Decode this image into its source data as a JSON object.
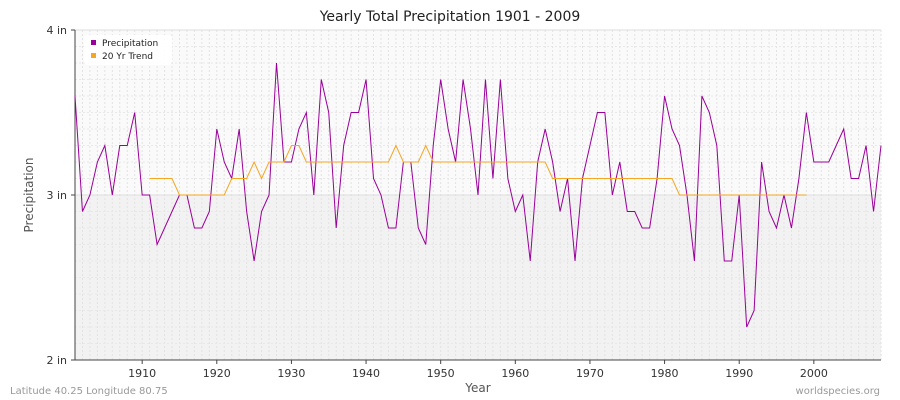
{
  "chart_data": {
    "type": "line",
    "title": "Yearly Total Precipitation 1901 - 2009",
    "xlabel": "Year",
    "ylabel": "Precipitation",
    "xlim": [
      1901,
      2009
    ],
    "ylim": [
      2,
      4
    ],
    "x_ticks": [
      1910,
      1920,
      1930,
      1940,
      1950,
      1960,
      1970,
      1980,
      1990,
      2000
    ],
    "y_ticks": [
      {
        "value": 2,
        "label": "2 in"
      },
      {
        "value": 3,
        "label": "3 in"
      },
      {
        "value": 4,
        "label": "4 in"
      }
    ],
    "grid": true,
    "legend_position": "top-left",
    "series": [
      {
        "name": "Precipitation",
        "color": "#990099",
        "x": [
          1901,
          1902,
          1903,
          1904,
          1905,
          1906,
          1907,
          1908,
          1909,
          1910,
          1911,
          1912,
          1913,
          1914,
          1915,
          1916,
          1917,
          1918,
          1919,
          1920,
          1921,
          1922,
          1923,
          1924,
          1925,
          1926,
          1927,
          1928,
          1929,
          1930,
          1931,
          1932,
          1933,
          1934,
          1935,
          1936,
          1937,
          1938,
          1939,
          1940,
          1941,
          1942,
          1943,
          1944,
          1945,
          1946,
          1947,
          1948,
          1949,
          1950,
          1951,
          1952,
          1953,
          1954,
          1955,
          1956,
          1957,
          1958,
          1959,
          1960,
          1961,
          1962,
          1963,
          1964,
          1965,
          1966,
          1967,
          1968,
          1969,
          1970,
          1971,
          1972,
          1973,
          1974,
          1975,
          1976,
          1977,
          1978,
          1979,
          1980,
          1981,
          1982,
          1983,
          1984,
          1985,
          1986,
          1987,
          1988,
          1989,
          1990,
          1991,
          1992,
          1993,
          1994,
          1995,
          1996,
          1997,
          1998,
          1999,
          2000,
          2001,
          2002,
          2003,
          2004,
          2005,
          2006,
          2007,
          2008,
          2009
        ],
        "y": [
          3.6,
          2.9,
          3.0,
          3.2,
          3.3,
          3.0,
          3.3,
          3.3,
          3.5,
          3.0,
          3.0,
          2.7,
          2.8,
          2.9,
          3.0,
          3.0,
          2.8,
          2.8,
          2.9,
          3.4,
          3.2,
          3.1,
          3.4,
          2.9,
          2.6,
          2.9,
          3.0,
          3.8,
          3.2,
          3.2,
          3.4,
          3.5,
          3.0,
          3.7,
          3.5,
          2.8,
          3.3,
          3.5,
          3.5,
          3.7,
          3.1,
          3.0,
          2.8,
          2.8,
          3.2,
          3.2,
          2.8,
          2.7,
          3.3,
          3.7,
          3.4,
          3.2,
          3.7,
          3.4,
          3.0,
          3.7,
          3.1,
          3.7,
          3.1,
          2.9,
          3.0,
          2.6,
          3.2,
          3.4,
          3.2,
          2.9,
          3.1,
          2.6,
          3.1,
          3.3,
          3.5,
          3.5,
          3.0,
          3.2,
          2.9,
          2.9,
          2.8,
          2.8,
          3.1,
          3.6,
          3.4,
          3.3,
          3.0,
          2.6,
          3.6,
          3.5,
          3.3,
          2.6,
          2.6,
          3.0,
          2.2,
          2.3,
          3.2,
          2.9,
          2.8,
          3.0,
          2.8,
          3.1,
          3.5,
          3.2,
          3.2,
          3.2,
          3.3,
          3.4,
          3.1,
          3.1,
          3.3,
          2.9,
          3.3
        ]
      },
      {
        "name": "20 Yr Trend",
        "color": "#f5a623",
        "x": [
          1911,
          1912,
          1913,
          1914,
          1915,
          1916,
          1917,
          1918,
          1919,
          1920,
          1921,
          1922,
          1923,
          1924,
          1925,
          1926,
          1927,
          1928,
          1929,
          1930,
          1931,
          1932,
          1933,
          1934,
          1935,
          1936,
          1937,
          1938,
          1939,
          1940,
          1941,
          1942,
          1943,
          1944,
          1945,
          1946,
          1947,
          1948,
          1949,
          1950,
          1951,
          1952,
          1953,
          1954,
          1955,
          1956,
          1957,
          1958,
          1959,
          1960,
          1961,
          1962,
          1963,
          1964,
          1965,
          1966,
          1967,
          1968,
          1969,
          1970,
          1971,
          1972,
          1973,
          1974,
          1975,
          1976,
          1977,
          1978,
          1979,
          1980,
          1981,
          1982,
          1983,
          1984,
          1985,
          1986,
          1987,
          1988,
          1989,
          1990,
          1991,
          1992,
          1993,
          1994,
          1995,
          1996,
          1997,
          1998,
          1999
        ],
        "y": [
          3.1,
          3.1,
          3.1,
          3.1,
          3.0,
          3.0,
          3.0,
          3.0,
          3.0,
          3.0,
          3.0,
          3.1,
          3.1,
          3.1,
          3.2,
          3.1,
          3.2,
          3.2,
          3.2,
          3.3,
          3.3,
          3.2,
          3.2,
          3.2,
          3.2,
          3.2,
          3.2,
          3.2,
          3.2,
          3.2,
          3.2,
          3.2,
          3.2,
          3.3,
          3.2,
          3.2,
          3.2,
          3.3,
          3.2,
          3.2,
          3.2,
          3.2,
          3.2,
          3.2,
          3.2,
          3.2,
          3.2,
          3.2,
          3.2,
          3.2,
          3.2,
          3.2,
          3.2,
          3.2,
          3.1,
          3.1,
          3.1,
          3.1,
          3.1,
          3.1,
          3.1,
          3.1,
          3.1,
          3.1,
          3.1,
          3.1,
          3.1,
          3.1,
          3.1,
          3.1,
          3.1,
          3.0,
          3.0,
          3.0,
          3.0,
          3.0,
          3.0,
          3.0,
          3.0,
          3.0,
          3.0,
          3.0,
          3.0,
          3.0,
          3.0,
          3.0,
          3.0,
          3.0,
          3.0
        ]
      }
    ]
  },
  "footer": {
    "location": "Latitude 40.25 Longitude 80.75",
    "credit": "worldspecies.org"
  }
}
